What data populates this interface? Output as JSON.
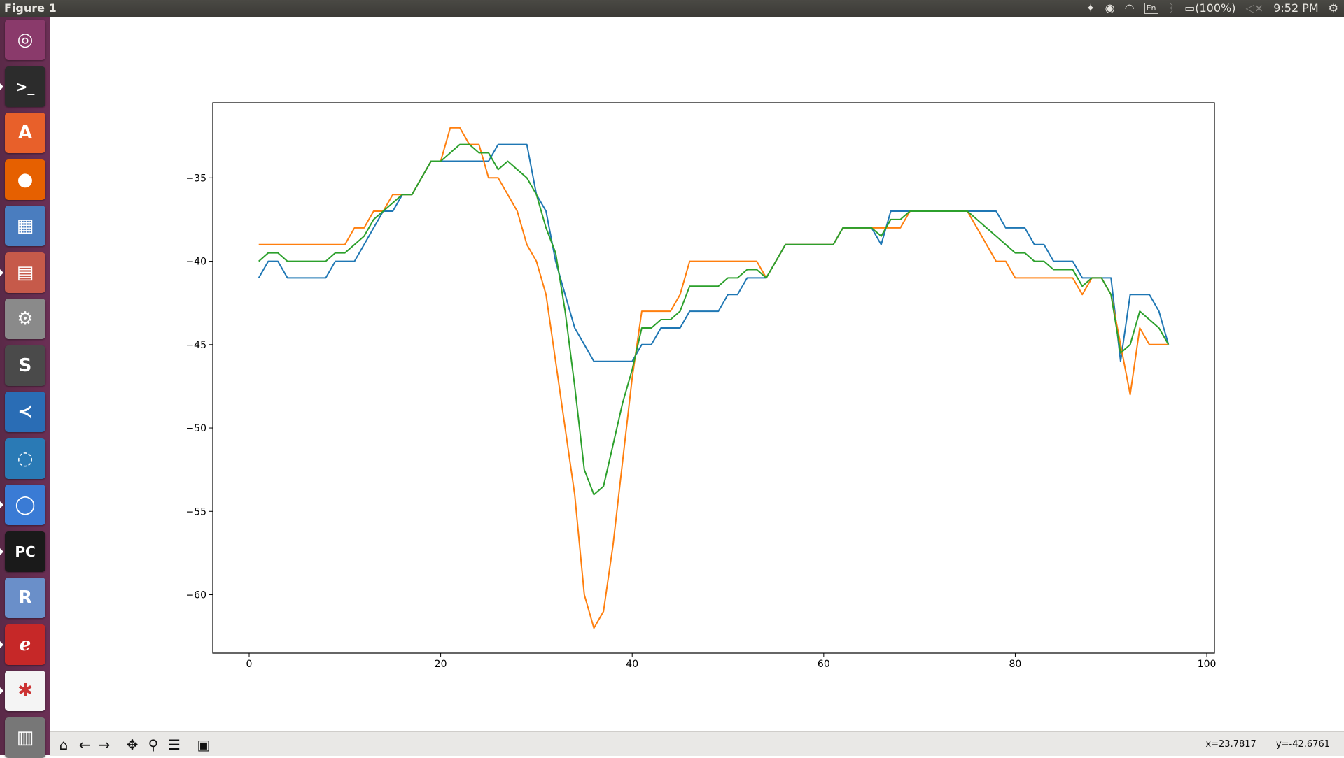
{
  "window": {
    "title": "Figure 1"
  },
  "tray": {
    "lang": "En",
    "battery": "(100%)",
    "time": "9:52 PM"
  },
  "launcher": [
    {
      "name": "ubuntu-dash-icon",
      "bg": "#8a3a6b",
      "glyph": "◎"
    },
    {
      "name": "terminal-icon",
      "bg": "#2c2c2c",
      "glyph": ">_"
    },
    {
      "name": "software-center-icon",
      "bg": "#e8602a",
      "glyph": "A"
    },
    {
      "name": "firefox-icon",
      "bg": "#e66000",
      "glyph": "●"
    },
    {
      "name": "image-viewer-icon",
      "bg": "#4a7dbf",
      "glyph": "▦"
    },
    {
      "name": "file-cabinet-icon",
      "bg": "#c65a4a",
      "glyph": "▤"
    },
    {
      "name": "system-tools-icon",
      "bg": "#8a8a8a",
      "glyph": "⚙"
    },
    {
      "name": "sublime-text-icon",
      "bg": "#4a4a4a",
      "glyph": "S"
    },
    {
      "name": "vscode-icon",
      "bg": "#2a6db5",
      "glyph": "≺"
    },
    {
      "name": "octave-icon",
      "bg": "#2a7ab5",
      "glyph": "◌"
    },
    {
      "name": "chromium-icon",
      "bg": "#3a7bd5",
      "glyph": "◯"
    },
    {
      "name": "pycharm-icon",
      "bg": "#1a1a1a",
      "glyph": "PC"
    },
    {
      "name": "r-icon",
      "bg": "#6a8fc9",
      "glyph": "R"
    },
    {
      "name": "evince-icon",
      "bg": "#c62828",
      "glyph": "ℯ"
    },
    {
      "name": "app-starburst-icon",
      "bg": "#f4f4f4",
      "glyph": "✱"
    },
    {
      "name": "trash-icon",
      "bg": "#777",
      "glyph": "▥"
    }
  ],
  "toolbar": {
    "buttons": [
      {
        "name": "home-icon",
        "glyph": "⌂"
      },
      {
        "name": "back-icon",
        "glyph": "←"
      },
      {
        "name": "forward-icon",
        "glyph": "→"
      },
      {
        "name": "pan-icon",
        "glyph": "✥"
      },
      {
        "name": "zoom-icon",
        "glyph": "⚲"
      },
      {
        "name": "configure-subplots-icon",
        "glyph": "☰"
      },
      {
        "name": "save-icon",
        "glyph": "▣"
      }
    ],
    "x_readout": "x=23.7817",
    "y_readout": "y=-42.6761"
  },
  "chart_data": {
    "type": "line",
    "title": "",
    "xlabel": "",
    "ylabel": "",
    "xlim": [
      -3.8,
      100.8
    ],
    "ylim": [
      -63.5,
      -30.5
    ],
    "xticks": [
      0,
      20,
      40,
      60,
      80,
      100
    ],
    "yticks": [
      -35,
      -40,
      -45,
      -50,
      -55,
      -60
    ],
    "grid": false,
    "x": [
      1,
      2,
      3,
      4,
      5,
      6,
      7,
      8,
      9,
      10,
      11,
      12,
      13,
      14,
      15,
      16,
      17,
      18,
      19,
      20,
      21,
      22,
      23,
      24,
      25,
      26,
      27,
      28,
      29,
      30,
      31,
      32,
      33,
      34,
      35,
      36,
      37,
      38,
      39,
      40,
      41,
      42,
      43,
      44,
      45,
      46,
      47,
      48,
      49,
      50,
      51,
      52,
      53,
      54,
      55,
      56,
      57,
      58,
      59,
      60,
      61,
      62,
      63,
      64,
      65,
      66,
      67,
      68,
      69,
      70,
      71,
      72,
      73,
      74,
      75,
      76,
      77,
      78,
      79,
      80,
      81,
      82,
      83,
      84,
      85,
      86,
      87,
      88,
      89,
      90,
      91,
      92,
      93,
      94,
      95,
      96
    ],
    "series": [
      {
        "color": "#1f77b4",
        "values": [
          -41,
          -40,
          -40,
          -41,
          -41,
          -41,
          -41,
          -41,
          -40,
          -40,
          -40,
          -39,
          -38,
          -37,
          -37,
          -36,
          -36,
          -35,
          -34,
          -34,
          -34,
          -34,
          -34,
          -34,
          -34,
          -33,
          -33,
          -33,
          -33,
          -36,
          -37,
          -40,
          -42,
          -44,
          -45,
          -46,
          -46,
          -46,
          -46,
          -46,
          -45,
          -45,
          -44,
          -44,
          -44,
          -43,
          -43,
          -43,
          -43,
          -42,
          -42,
          -41,
          -41,
          -41,
          -40,
          -39,
          -39,
          -39,
          -39,
          -39,
          -39,
          -38,
          -38,
          -38,
          -38,
          -39,
          -37,
          -37,
          -37,
          -37,
          -37,
          -37,
          -37,
          -37,
          -37,
          -37,
          -37,
          -37,
          -38,
          -38,
          -38,
          -39,
          -39,
          -40,
          -40,
          -40,
          -41,
          -41,
          -41,
          -41,
          -46,
          -42,
          -42,
          -42,
          -43,
          -45
        ]
      },
      {
        "color": "#ff7f0e",
        "values": [
          -39,
          -39,
          -39,
          -39,
          -39,
          -39,
          -39,
          -39,
          -39,
          -39,
          -38,
          -38,
          -37,
          -37,
          -36,
          -36,
          -36,
          -35,
          -34,
          -34,
          -32,
          -32,
          -33,
          -33,
          -35,
          -35,
          -36,
          -37,
          -39,
          -40,
          -42,
          -46,
          -50,
          -54,
          -60,
          -62,
          -61,
          -57,
          -52,
          -47,
          -43,
          -43,
          -43,
          -43,
          -42,
          -40,
          -40,
          -40,
          -40,
          -40,
          -40,
          -40,
          -40,
          -41,
          -40,
          -39,
          -39,
          -39,
          -39,
          -39,
          -39,
          -38,
          -38,
          -38,
          -38,
          -38,
          -38,
          -38,
          -37,
          -37,
          -37,
          -37,
          -37,
          -37,
          -37,
          -38,
          -39,
          -40,
          -40,
          -41,
          -41,
          -41,
          -41,
          -41,
          -41,
          -41,
          -42,
          -41,
          -41,
          -42,
          -45,
          -48,
          -44,
          -45,
          -45,
          -45
        ]
      },
      {
        "color": "#2ca02c",
        "values": [
          -40,
          -39.5,
          -39.5,
          -40,
          -40,
          -40,
          -40,
          -40,
          -39.5,
          -39.5,
          -39,
          -38.5,
          -37.5,
          -37,
          -36.5,
          -36,
          -36,
          -35,
          -34,
          -34,
          -33.5,
          -33,
          -33,
          -33.5,
          -33.5,
          -34.5,
          -34,
          -34.5,
          -35,
          -36,
          -38,
          -39.5,
          -43,
          -47.5,
          -52.5,
          -54,
          -53.5,
          -51,
          -48.5,
          -46.5,
          -44,
          -44,
          -43.5,
          -43.5,
          -43,
          -41.5,
          -41.5,
          -41.5,
          -41.5,
          -41,
          -41,
          -40.5,
          -40.5,
          -41,
          -40,
          -39,
          -39,
          -39,
          -39,
          -39,
          -39,
          -38,
          -38,
          -38,
          -38,
          -38.5,
          -37.5,
          -37.5,
          -37,
          -37,
          -37,
          -37,
          -37,
          -37,
          -37,
          -37.5,
          -38,
          -38.5,
          -39,
          -39.5,
          -39.5,
          -40,
          -40,
          -40.5,
          -40.5,
          -40.5,
          -41.5,
          -41,
          -41,
          -42,
          -45.5,
          -45,
          -43,
          -43.5,
          -44,
          -45
        ]
      }
    ]
  }
}
